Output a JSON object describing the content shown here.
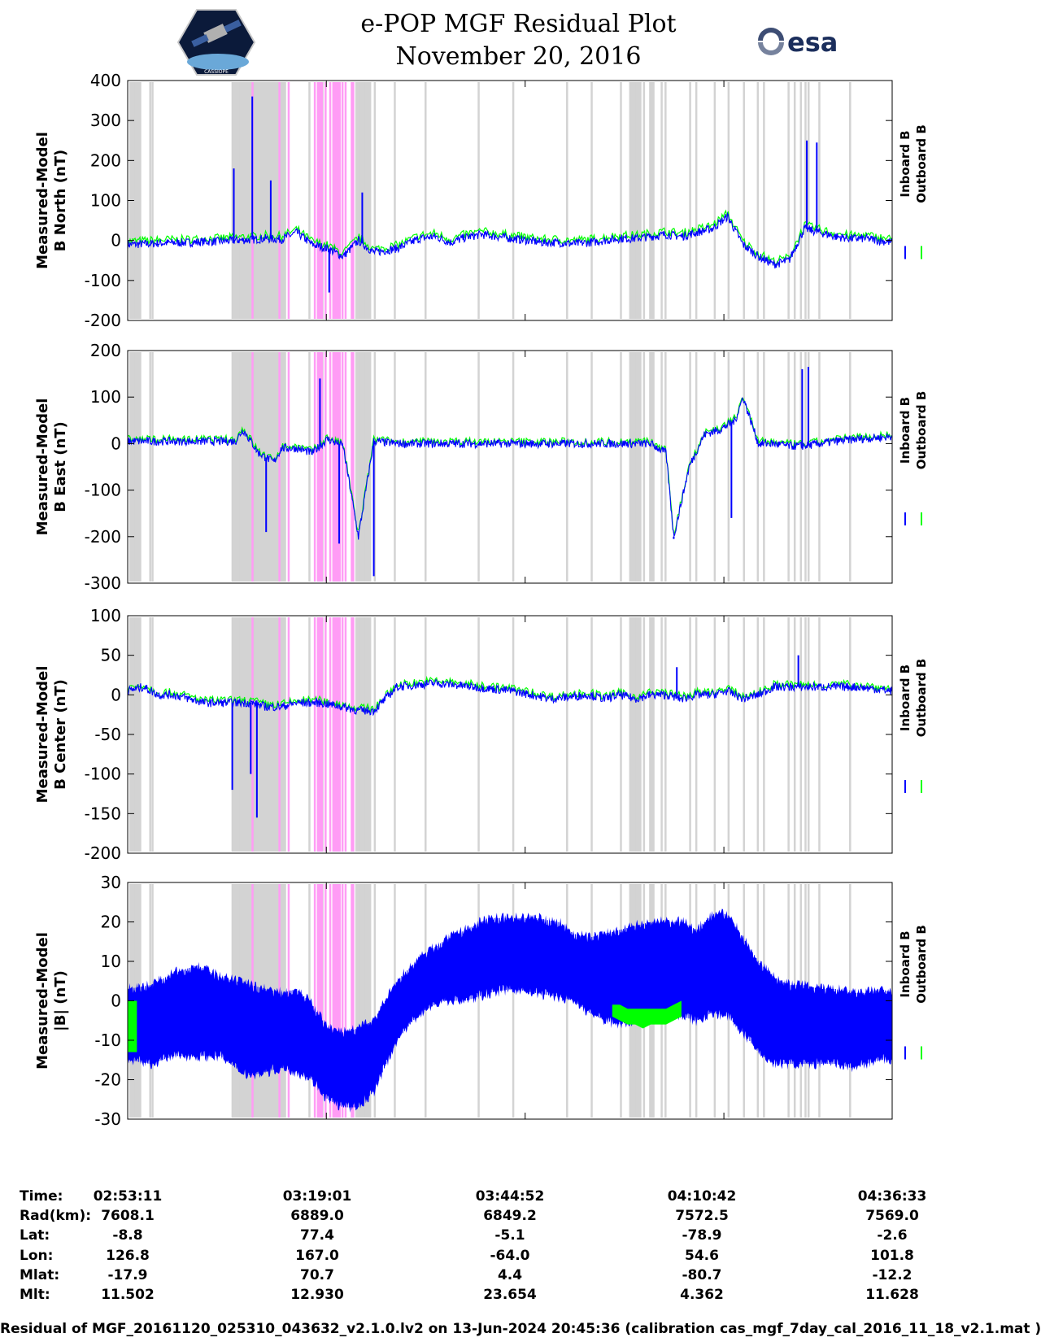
{
  "header": {
    "title": "e-POP MGF Residual Plot",
    "date": "November 20, 2016",
    "esa_logo_text": "esa",
    "mission_logo_text": "CASSIOPE"
  },
  "chart_data": [
    {
      "type": "line",
      "panel": "B North",
      "ylabel_line1": "Measured-Model",
      "ylabel_line2": "B North (nT)",
      "ylim": [
        -200,
        400
      ],
      "yticks": [
        400,
        300,
        200,
        100,
        0,
        -100,
        -200
      ],
      "series": [
        {
          "name": "Inboard B",
          "color": "#0000ff"
        },
        {
          "name": "Outboard B",
          "color": "#00ff00"
        }
      ],
      "trace_minutes": [
        0,
        3,
        5,
        8,
        10,
        12,
        14,
        16,
        18,
        20,
        22,
        24,
        26,
        28,
        30,
        32,
        35,
        38,
        40,
        42,
        44,
        46,
        48,
        50,
        52,
        54,
        56,
        58,
        60,
        62,
        64,
        66,
        68,
        70,
        72,
        74,
        76,
        78,
        80,
        82,
        84,
        86,
        88,
        90,
        92,
        94,
        96,
        99.4
      ],
      "trace_values": [
        -10,
        -8,
        -6,
        -5,
        -3,
        -2,
        0,
        2,
        5,
        3,
        20,
        -10,
        -20,
        -40,
        0,
        -30,
        -20,
        5,
        10,
        -5,
        8,
        15,
        10,
        5,
        0,
        -5,
        -5,
        -8,
        -5,
        0,
        5,
        5,
        10,
        15,
        10,
        20,
        30,
        60,
        -10,
        -40,
        -60,
        -50,
        30,
        20,
        10,
        5,
        5,
        -5
      ],
      "outboard_offset": 8,
      "spikes_minutes": [
        13.8,
        16.2,
        18.6,
        26.2,
        30.5,
        88.3,
        89.6
      ],
      "spikes_values": [
        180,
        360,
        150,
        -130,
        120,
        250,
        245
      ]
    },
    {
      "type": "line",
      "panel": "B East",
      "ylabel_line1": "Measured-Model",
      "ylabel_line2": "B East (nT)",
      "ylim": [
        -300,
        200
      ],
      "yticks": [
        200,
        100,
        0,
        -100,
        -200,
        -300
      ],
      "series": [
        {
          "name": "Inboard B",
          "color": "#0000ff"
        },
        {
          "name": "Outboard B",
          "color": "#00ff00"
        }
      ],
      "trace_minutes": [
        0,
        5,
        10,
        14,
        15,
        17,
        19,
        20,
        22,
        24,
        26,
        28,
        30,
        32,
        35,
        40,
        45,
        50,
        55,
        60,
        62,
        64,
        66,
        68,
        70,
        71,
        73,
        75,
        77,
        79,
        80,
        82,
        84,
        86,
        88,
        90,
        92,
        95,
        99.4
      ],
      "trace_values": [
        5,
        5,
        5,
        5,
        30,
        -20,
        -40,
        -10,
        -10,
        -20,
        10,
        -5,
        -200,
        5,
        0,
        0,
        0,
        0,
        0,
        0,
        0,
        0,
        0,
        0,
        -20,
        -200,
        -50,
        20,
        30,
        50,
        100,
        0,
        0,
        -5,
        -5,
        0,
        5,
        10,
        15
      ],
      "outboard_offset": 4,
      "spikes_minutes": [
        18.0,
        25.0,
        27.5,
        32.0,
        71.0,
        78.5,
        87.7,
        88.5
      ],
      "spikes_values": [
        -190,
        140,
        -215,
        -285,
        -205,
        -160,
        160,
        165
      ]
    },
    {
      "type": "line",
      "panel": "B Center",
      "ylabel_line1": "Measured-Model",
      "ylabel_line2": "B Center (nT)",
      "ylim": [
        -200,
        100
      ],
      "yticks": [
        100,
        50,
        0,
        -50,
        -100,
        -150,
        -200
      ],
      "series": [
        {
          "name": "Inboard B",
          "color": "#0000ff"
        },
        {
          "name": "Outboard B",
          "color": "#00ff00"
        }
      ],
      "trace_minutes": [
        0,
        2,
        4,
        6,
        8,
        10,
        12,
        14,
        16,
        18,
        20,
        22,
        25,
        28,
        30,
        32,
        35,
        40,
        45,
        50,
        55,
        60,
        62,
        64,
        66,
        68,
        70,
        72,
        74,
        76,
        78,
        80,
        82,
        84,
        86,
        88,
        90,
        95,
        99.4
      ],
      "trace_values": [
        5,
        10,
        0,
        0,
        -5,
        -10,
        -10,
        -10,
        -10,
        -15,
        -15,
        -10,
        -10,
        -15,
        -20,
        -20,
        10,
        15,
        10,
        5,
        -5,
        0,
        -5,
        0,
        -5,
        0,
        0,
        -5,
        0,
        0,
        5,
        -5,
        0,
        10,
        10,
        10,
        10,
        10,
        5
      ],
      "outboard_offset": 3,
      "spikes_minutes": [
        13.6,
        16.0,
        16.8,
        71.4,
        87.2
      ],
      "spikes_values": [
        -120,
        -100,
        -155,
        35,
        50
      ]
    },
    {
      "type": "line",
      "panel": "|B|",
      "ylabel_line1": "Measured-Model",
      "ylabel_line2": "|B| (nT)",
      "ylim": [
        -30,
        30
      ],
      "yticks": [
        30,
        20,
        10,
        0,
        -10,
        -20,
        -30
      ],
      "series": [
        {
          "name": "Inboard B",
          "color": "#0000ff"
        },
        {
          "name": "Outboard B",
          "color": "#00ff00"
        }
      ],
      "band_minutes": [
        0,
        3,
        6,
        9,
        12,
        14,
        16,
        18,
        20,
        22,
        24,
        26,
        28,
        30,
        32,
        35,
        38,
        41,
        44,
        47,
        50,
        53,
        56,
        58,
        60,
        62,
        64,
        66,
        68,
        70,
        72,
        74,
        76,
        78,
        80,
        82,
        84,
        86,
        88,
        90,
        92,
        94,
        96,
        98,
        99.4
      ],
      "band_top": [
        3,
        4,
        7,
        9,
        6,
        5,
        4,
        3,
        2,
        3,
        -1,
        -7,
        -8,
        -7,
        -5,
        5,
        11,
        15,
        18,
        21,
        21,
        21,
        20,
        17,
        16,
        17,
        18,
        19,
        20,
        20,
        20,
        18,
        22,
        22,
        16,
        10,
        6,
        4,
        4,
        3,
        3,
        2,
        2,
        3,
        2
      ],
      "band_bottom": [
        -15,
        -16,
        -14,
        -14,
        -14,
        -17,
        -19,
        -18,
        -17,
        -18,
        -20,
        -25,
        -27,
        -27,
        -23,
        -10,
        -3,
        0,
        0,
        2,
        3,
        2,
        1,
        0,
        -3,
        -5,
        -6,
        -5,
        -4,
        -3,
        -4,
        -5,
        -3,
        -4,
        -8,
        -13,
        -16,
        -16,
        -16,
        -16,
        -16,
        -17,
        -16,
        -15,
        -15
      ],
      "outboard_minutes": [
        63,
        64,
        65,
        66,
        67,
        68,
        69,
        70,
        71,
        72
      ],
      "outboard_top": [
        -1,
        -1,
        -2,
        -2,
        -2,
        -2,
        -2,
        -2,
        -1,
        0
      ],
      "outboard_bottom": [
        -4,
        -5,
        -6,
        -6,
        -7,
        -6,
        -6,
        -6,
        -5,
        -4
      ]
    }
  ],
  "legend": {
    "inboard_label": "Inboard B",
    "outboard_label": "Outboard B",
    "inboard_color": "#0000ff",
    "outboard_color": "#00ff00"
  },
  "flags": {
    "gray_color": "#d3d3d3",
    "magenta_color": "#ff9cf5",
    "gray_minutes": [
      0.3,
      0.6,
      0.9,
      1.2,
      1.5,
      2.8,
      3.1,
      13.6,
      14.0,
      14.5,
      15.0,
      15.5,
      16.0,
      16.4,
      17.0,
      17.8,
      18.2,
      18.6,
      19.2,
      19.6,
      20.2,
      23.5,
      25.2,
      29.8,
      30.2,
      30.6,
      31.0,
      31.4,
      32.0,
      34.6,
      38.6,
      45.5,
      50.0,
      57.0,
      60.2,
      64.0,
      65.5,
      66.0,
      66.4,
      67.0,
      68.2,
      69.3,
      69.8,
      73.0,
      73.8,
      76.2,
      78.0,
      80.0,
      81.8,
      82.6,
      85.8,
      86.6,
      87.4,
      88.0,
      88.4,
      89.8,
      93.8
    ],
    "gray_wide": [
      [
        0.2,
        1.7
      ],
      [
        13.5,
        20.6
      ],
      [
        29.6,
        31.6
      ],
      [
        65.2,
        66.8
      ],
      [
        67.8,
        68.5
      ]
    ],
    "magenta_minutes": [
      16.1,
      19.6,
      20.8,
      24.2,
      25.0,
      25.6,
      26.2,
      26.6,
      27.8,
      28.2,
      29.0,
      29.2
    ],
    "magenta_wide": [
      [
        26.8,
        27.7
      ],
      [
        24.6,
        25.4
      ]
    ]
  },
  "x_axis": {
    "start_minutes": 0,
    "end_minutes": 99.4,
    "tick_minutes": [
      0,
      25.83,
      51.68,
      77.52,
      103.37
    ]
  },
  "orbit_info": {
    "labels": [
      "Time:",
      "Rad(km):",
      "Lat:",
      "Lon:",
      "Mlat:",
      "Mlt:"
    ],
    "columns": [
      {
        "Time": "02:53:11",
        "Rad": "7608.1",
        "Lat": "-8.8",
        "Lon": "126.8",
        "Mlat": "-17.9",
        "Mlt": "11.502"
      },
      {
        "Time": "03:19:01",
        "Rad": "6889.0",
        "Lat": "77.4",
        "Lon": "167.0",
        "Mlat": "70.7",
        "Mlt": "12.930"
      },
      {
        "Time": "03:44:52",
        "Rad": "6849.2",
        "Lat": "-5.1",
        "Lon": "-64.0",
        "Mlat": "4.4",
        "Mlt": "23.654"
      },
      {
        "Time": "04:10:42",
        "Rad": "7572.5",
        "Lat": "-78.9",
        "Lon": "54.6",
        "Mlat": "-80.7",
        "Mlt": "4.362"
      },
      {
        "Time": "04:36:33",
        "Rad": "7569.0",
        "Lat": "-2.6",
        "Lon": "101.8",
        "Mlat": "-12.2",
        "Mlt": "11.628"
      }
    ]
  },
  "footer": "Residual of MGF_20161120_025310_043632_v2.1.0.lv2 on 13-Jun-2024 20:45:36 (calibration cas_mgf_7day_cal_2016_11_18_v2.1.mat )"
}
